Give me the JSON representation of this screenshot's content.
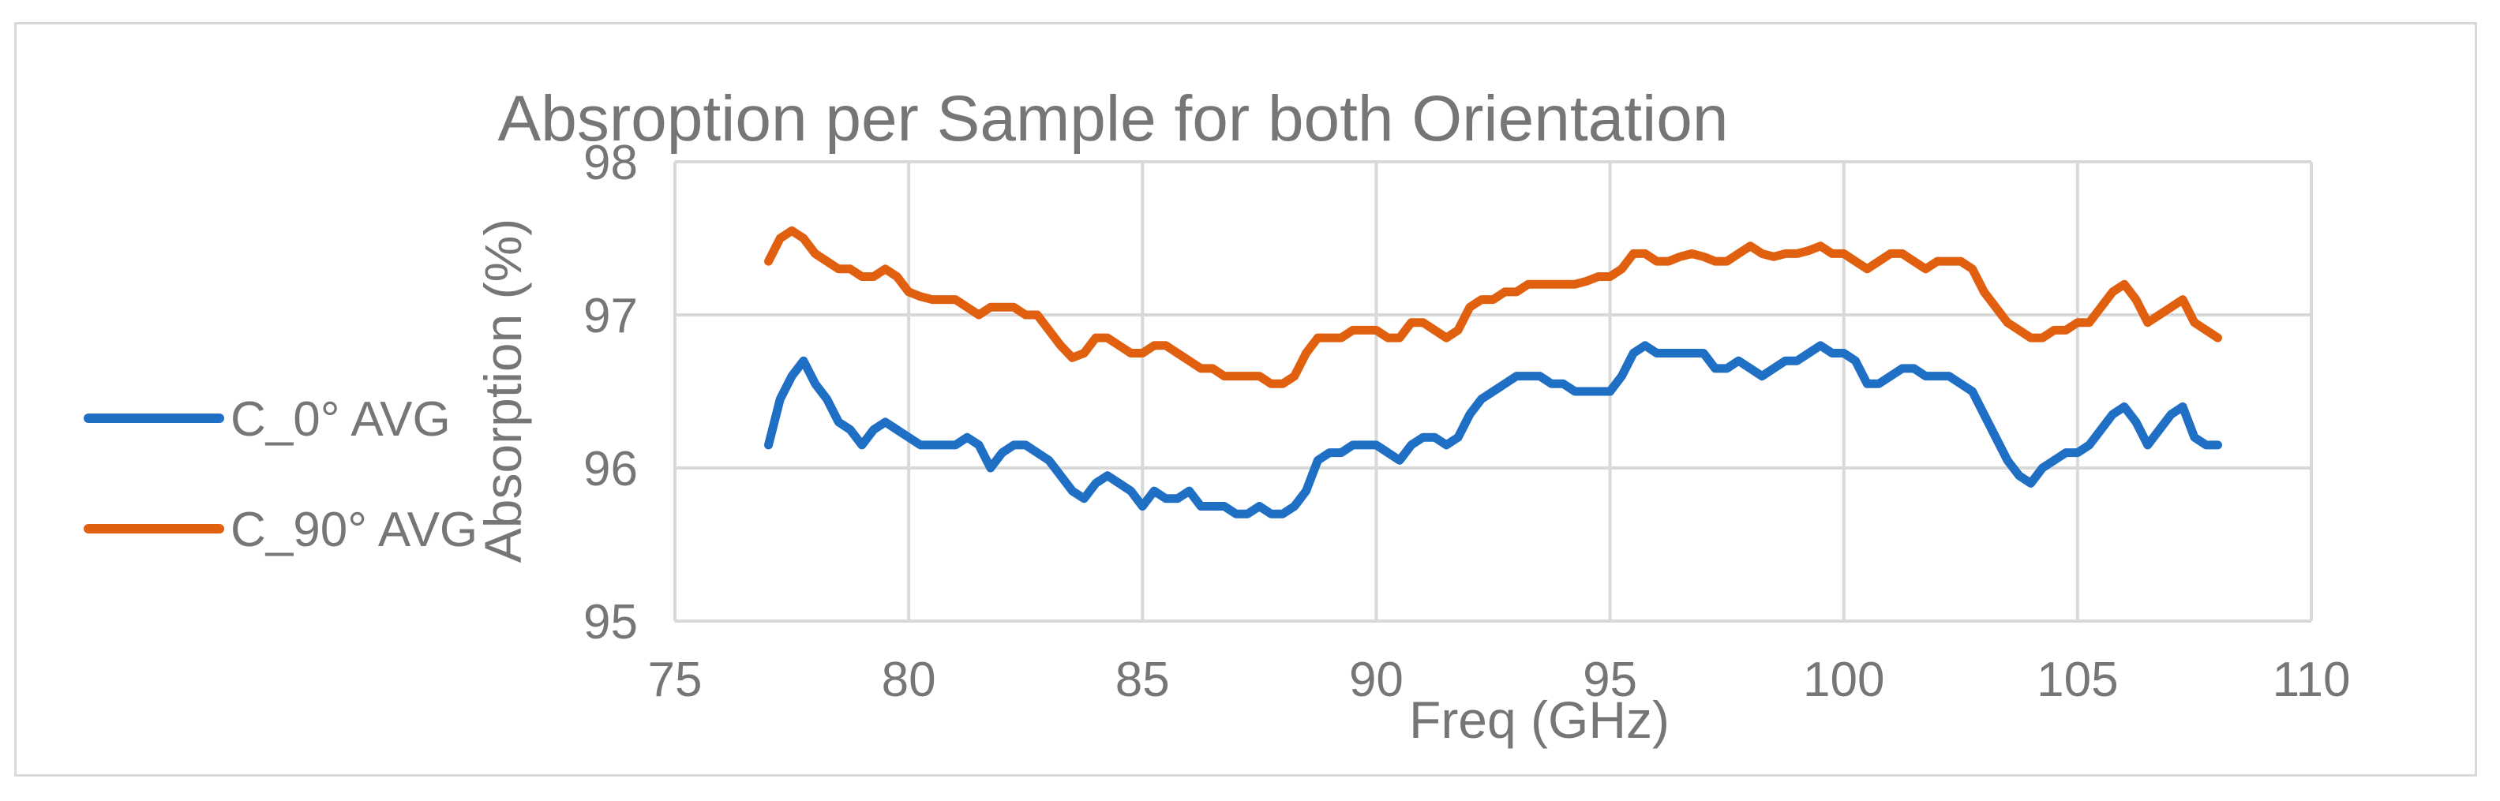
{
  "chart_data": {
    "type": "line",
    "title": "Absroption per Sample for both Orientation",
    "xlabel": "Freq (GHz)",
    "ylabel": "Absorption (%)",
    "xlim": [
      75,
      110
    ],
    "ylim": [
      95,
      98
    ],
    "xticks": [
      75,
      80,
      85,
      90,
      95,
      100,
      105,
      110
    ],
    "yticks": [
      95,
      96,
      97,
      98
    ],
    "grid": true,
    "legend_position": "left",
    "colors": {
      "C_0° AVG": "#1f6fc4",
      "C_90° AVG": "#e06010",
      "grid": "#d9d9d9",
      "text": "#767676"
    },
    "series": [
      {
        "name": "C_0° AVG",
        "color": "#1f6fc4",
        "x": [
          77.0,
          77.25,
          77.5,
          77.75,
          78.0,
          78.25,
          78.5,
          78.75,
          79.0,
          79.25,
          79.5,
          79.75,
          80.0,
          80.25,
          80.5,
          80.75,
          81.0,
          81.25,
          81.5,
          81.75,
          82.0,
          82.25,
          82.5,
          82.75,
          83.0,
          83.25,
          83.5,
          83.75,
          84.0,
          84.25,
          84.5,
          84.75,
          85.0,
          85.25,
          85.5,
          85.75,
          86.0,
          86.25,
          86.5,
          86.75,
          87.0,
          87.25,
          87.5,
          87.75,
          88.0,
          88.25,
          88.5,
          88.75,
          89.0,
          89.25,
          89.5,
          89.75,
          90.0,
          90.25,
          90.5,
          90.75,
          91.0,
          91.25,
          91.5,
          91.75,
          92.0,
          92.25,
          92.5,
          92.75,
          93.0,
          93.25,
          93.5,
          93.75,
          94.0,
          94.25,
          94.5,
          94.75,
          95.0,
          95.25,
          95.5,
          95.75,
          96.0,
          96.25,
          96.5,
          96.75,
          97.0,
          97.25,
          97.5,
          97.75,
          98.0,
          98.25,
          98.5,
          98.75,
          99.0,
          99.25,
          99.5,
          99.75,
          100.0,
          100.25,
          100.5,
          100.75,
          101.0,
          101.25,
          101.5,
          101.75,
          102.0,
          102.25,
          102.5,
          102.75,
          103.0,
          103.25,
          103.5,
          103.75,
          104.0,
          104.25,
          104.5,
          104.75,
          105.0,
          105.25,
          105.5,
          105.75,
          106.0,
          106.25,
          106.5,
          106.75,
          107.0,
          107.25,
          107.5,
          107.75,
          108.0
        ],
        "y": [
          96.15,
          96.45,
          96.6,
          96.7,
          96.55,
          96.45,
          96.3,
          96.25,
          96.15,
          96.25,
          96.3,
          96.25,
          96.2,
          96.15,
          96.15,
          96.15,
          96.15,
          96.2,
          96.15,
          96.0,
          96.1,
          96.15,
          96.15,
          96.1,
          96.05,
          95.95,
          95.85,
          95.8,
          95.9,
          95.95,
          95.9,
          95.85,
          95.75,
          95.85,
          95.8,
          95.8,
          95.85,
          95.75,
          95.75,
          95.75,
          95.7,
          95.7,
          95.75,
          95.7,
          95.7,
          95.75,
          95.85,
          96.05,
          96.1,
          96.1,
          96.15,
          96.15,
          96.15,
          96.1,
          96.05,
          96.15,
          96.2,
          96.2,
          96.15,
          96.2,
          96.35,
          96.45,
          96.5,
          96.55,
          96.6,
          96.6,
          96.6,
          96.55,
          96.55,
          96.5,
          96.5,
          96.5,
          96.5,
          96.6,
          96.75,
          96.8,
          96.75,
          96.75,
          96.75,
          96.75,
          96.75,
          96.65,
          96.65,
          96.7,
          96.65,
          96.6,
          96.65,
          96.7,
          96.7,
          96.75,
          96.8,
          96.75,
          96.75,
          96.7,
          96.55,
          96.55,
          96.6,
          96.65,
          96.65,
          96.6,
          96.6,
          96.6,
          96.55,
          96.5,
          96.35,
          96.2,
          96.05,
          95.95,
          95.9,
          96.0,
          96.05,
          96.1,
          96.1,
          96.15,
          96.25,
          96.35,
          96.4,
          96.3,
          96.15,
          96.25,
          96.35,
          96.4,
          96.2,
          96.15,
          96.15
        ],
        "values_note_hidden": null
      },
      {
        "name": "C_90° AVG",
        "color": "#e06010",
        "x": [
          77.0,
          77.25,
          77.5,
          77.75,
          78.0,
          78.25,
          78.5,
          78.75,
          79.0,
          79.25,
          79.5,
          79.75,
          80.0,
          80.25,
          80.5,
          80.75,
          81.0,
          81.25,
          81.5,
          81.75,
          82.0,
          82.25,
          82.5,
          82.75,
          83.0,
          83.25,
          83.5,
          83.75,
          84.0,
          84.25,
          84.5,
          84.75,
          85.0,
          85.25,
          85.5,
          85.75,
          86.0,
          86.25,
          86.5,
          86.75,
          87.0,
          87.25,
          87.5,
          87.75,
          88.0,
          88.25,
          88.5,
          88.75,
          89.0,
          89.25,
          89.5,
          89.75,
          90.0,
          90.25,
          90.5,
          90.75,
          91.0,
          91.25,
          91.5,
          91.75,
          92.0,
          92.25,
          92.5,
          92.75,
          93.0,
          93.25,
          93.5,
          93.75,
          94.0,
          94.25,
          94.5,
          94.75,
          95.0,
          95.25,
          95.5,
          95.75,
          96.0,
          96.25,
          96.5,
          96.75,
          97.0,
          97.25,
          97.5,
          97.75,
          98.0,
          98.25,
          98.5,
          98.75,
          99.0,
          99.25,
          99.5,
          99.75,
          100.0,
          100.25,
          100.5,
          100.75,
          101.0,
          101.25,
          101.5,
          101.75,
          102.0,
          102.25,
          102.5,
          102.75,
          103.0,
          103.25,
          103.5,
          103.75,
          104.0,
          104.25,
          104.5,
          104.75,
          105.0,
          105.25,
          105.5,
          105.75,
          106.0,
          106.25,
          106.5,
          106.75,
          107.0,
          107.25,
          107.5,
          107.75,
          108.0
        ],
        "y": [
          97.35,
          97.5,
          97.55,
          97.5,
          97.4,
          97.35,
          97.3,
          97.3,
          97.25,
          97.25,
          97.3,
          97.25,
          97.15,
          97.12,
          97.1,
          97.1,
          97.1,
          97.05,
          97.0,
          97.05,
          97.05,
          97.05,
          97.0,
          97.0,
          96.9,
          96.8,
          96.72,
          96.75,
          96.85,
          96.85,
          96.8,
          96.75,
          96.75,
          96.8,
          96.8,
          96.75,
          96.7,
          96.65,
          96.65,
          96.6,
          96.6,
          96.6,
          96.6,
          96.55,
          96.55,
          96.6,
          96.75,
          96.85,
          96.85,
          96.85,
          96.9,
          96.9,
          96.9,
          96.85,
          96.85,
          96.95,
          96.95,
          96.9,
          96.85,
          96.9,
          97.05,
          97.1,
          97.1,
          97.15,
          97.15,
          97.2,
          97.2,
          97.2,
          97.2,
          97.2,
          97.22,
          97.25,
          97.25,
          97.3,
          97.4,
          97.4,
          97.35,
          97.35,
          97.38,
          97.4,
          97.38,
          97.35,
          97.35,
          97.4,
          97.45,
          97.4,
          97.38,
          97.4,
          97.4,
          97.42,
          97.45,
          97.4,
          97.4,
          97.35,
          97.3,
          97.35,
          97.4,
          97.4,
          97.35,
          97.3,
          97.35,
          97.35,
          97.35,
          97.3,
          97.15,
          97.05,
          96.95,
          96.9,
          96.85,
          96.85,
          96.9,
          96.9,
          96.95,
          96.95,
          97.05,
          97.15,
          97.2,
          97.1,
          96.95,
          97.0,
          97.05,
          97.1,
          96.95,
          96.9,
          96.85
        ]
      }
    ]
  }
}
